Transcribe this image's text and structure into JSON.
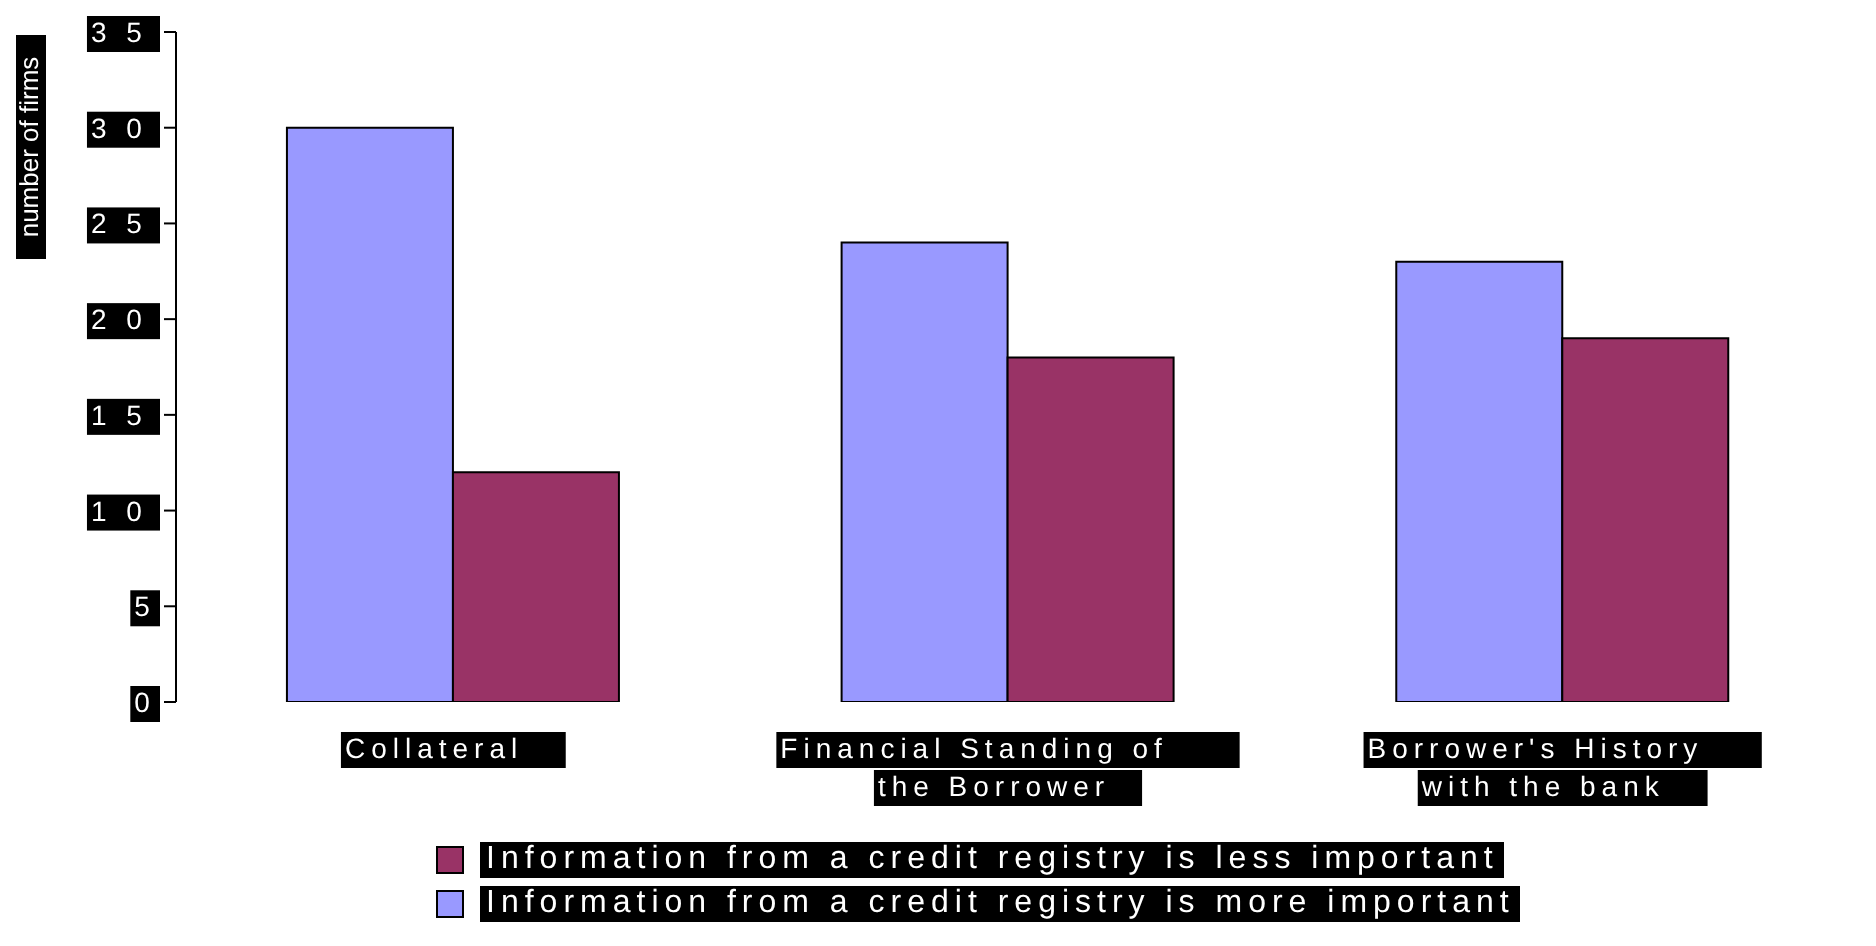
{
  "chart_data": {
    "type": "bar",
    "ylabel": "number of firms",
    "categories": [
      "Collateral",
      "Financial Standing of the Borrower",
      "Borrower's History with the bank"
    ],
    "series": [
      {
        "name": "Information from a credit registry is more important",
        "color": "#9999ff",
        "values": [
          30,
          24,
          23
        ]
      },
      {
        "name": "Information from a credit registry is less important",
        "color": "#993366",
        "values": [
          12,
          18,
          19
        ]
      }
    ],
    "ylim": [
      0,
      35
    ],
    "yticks": [
      0,
      5,
      10,
      15,
      20,
      25,
      30,
      35
    ],
    "legend": "bottom"
  }
}
